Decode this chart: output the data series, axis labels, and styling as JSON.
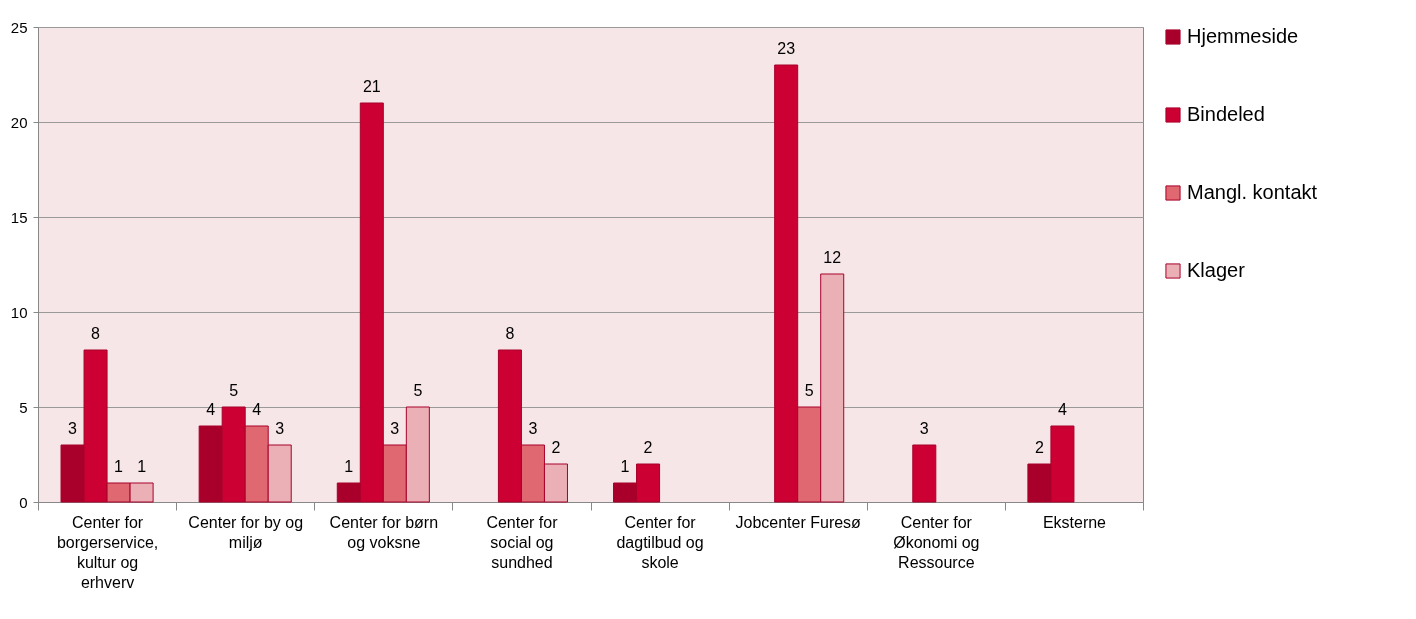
{
  "chart_data": {
    "type": "bar",
    "categories": [
      "Center for borgerservice, kultur og erhverv",
      "Center for by og miljø",
      "Center for børn og voksne",
      "Center for social og sundhed",
      "Center for dagtilbud og skole",
      "Jobcenter Furesø",
      "Center for Økonomi og Ressource",
      "Eksterne"
    ],
    "series": [
      {
        "name": "Hjemmeside",
        "color": "#a8002a",
        "values": [
          3,
          4,
          1,
          null,
          1,
          null,
          null,
          2
        ]
      },
      {
        "name": "Bindeled",
        "color": "#cc0033",
        "values": [
          8,
          5,
          21,
          8,
          2,
          23,
          3,
          4
        ]
      },
      {
        "name": "Mangl. kontakt",
        "color": "#e06870",
        "values": [
          1,
          4,
          3,
          3,
          null,
          5,
          null,
          null
        ]
      },
      {
        "name": "Klager",
        "color": "#ebb0b6",
        "values": [
          1,
          3,
          5,
          2,
          null,
          12,
          null,
          null
        ]
      }
    ],
    "ylim": [
      0,
      25
    ],
    "yticks": [
      0,
      5,
      10,
      15,
      20,
      25
    ],
    "grid": "y",
    "legend": "right",
    "data_labels": true
  }
}
